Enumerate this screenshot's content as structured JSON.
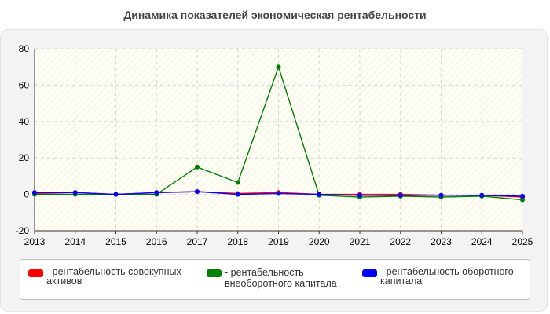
{
  "title": "Динамика показателей экономическая рентабельности",
  "chart_data": {
    "type": "line",
    "title": "Динамика показателей экономическая рентабельности",
    "xlabel": "",
    "ylabel": "",
    "x": [
      2013,
      2014,
      2015,
      2016,
      2017,
      2018,
      2019,
      2020,
      2021,
      2022,
      2023,
      2024,
      2025
    ],
    "ylim": [
      -20,
      80
    ],
    "yticks": [
      -20,
      0,
      20,
      40,
      60,
      80
    ],
    "grid": true,
    "legend_position": "bottom",
    "series": [
      {
        "name": "- рентабельность совокупных активов",
        "color": "#ff0000",
        "values": [
          0.5,
          1.0,
          0.0,
          1.0,
          1.5,
          0.5,
          1.0,
          0.0,
          0.0,
          0.0,
          -0.5,
          -0.5,
          -1.5
        ]
      },
      {
        "name": "- рентабельность внеоборотного капитала",
        "color": "#008000",
        "values": [
          0.0,
          0.0,
          0.0,
          0.0,
          15.0,
          6.5,
          70.0,
          -0.5,
          -1.5,
          -1.0,
          -1.5,
          -1.0,
          -3.0
        ]
      },
      {
        "name": "- рентабельность оборотного капитала",
        "color": "#0000ff",
        "values": [
          1.0,
          1.0,
          0.0,
          1.0,
          1.5,
          0.0,
          0.5,
          0.0,
          -0.5,
          -0.5,
          -0.5,
          -0.5,
          -1.0
        ]
      }
    ]
  },
  "legend": {
    "items": [
      {
        "line1": "- рентабельность совокупных",
        "line2": "активов",
        "color": "#ff0000"
      },
      {
        "line1": "- рентабельность",
        "line2": "внеоборотного капитала",
        "color": "#008000"
      },
      {
        "line1": "- рентабельность оборотного",
        "line2": "капитала",
        "color": "#0000ff"
      }
    ]
  }
}
